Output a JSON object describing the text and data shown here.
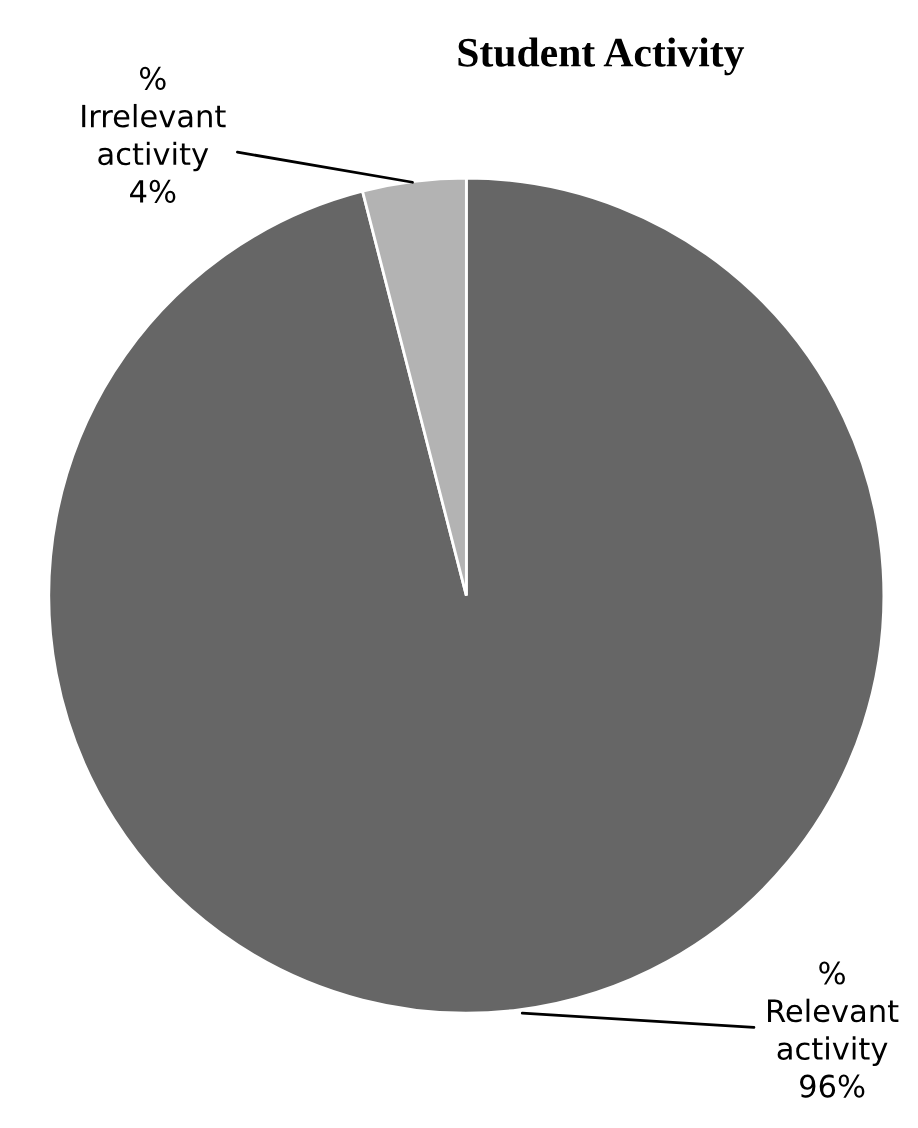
{
  "chart_data": {
    "type": "pie",
    "title": "Student Activity",
    "categories": [
      "% Relevant activity",
      "% Irrelevant activity"
    ],
    "values": [
      96,
      4
    ],
    "value_labels": [
      "96%",
      "4%"
    ],
    "colors": [
      "#666666",
      "#b3b3b3"
    ],
    "legend": false
  }
}
